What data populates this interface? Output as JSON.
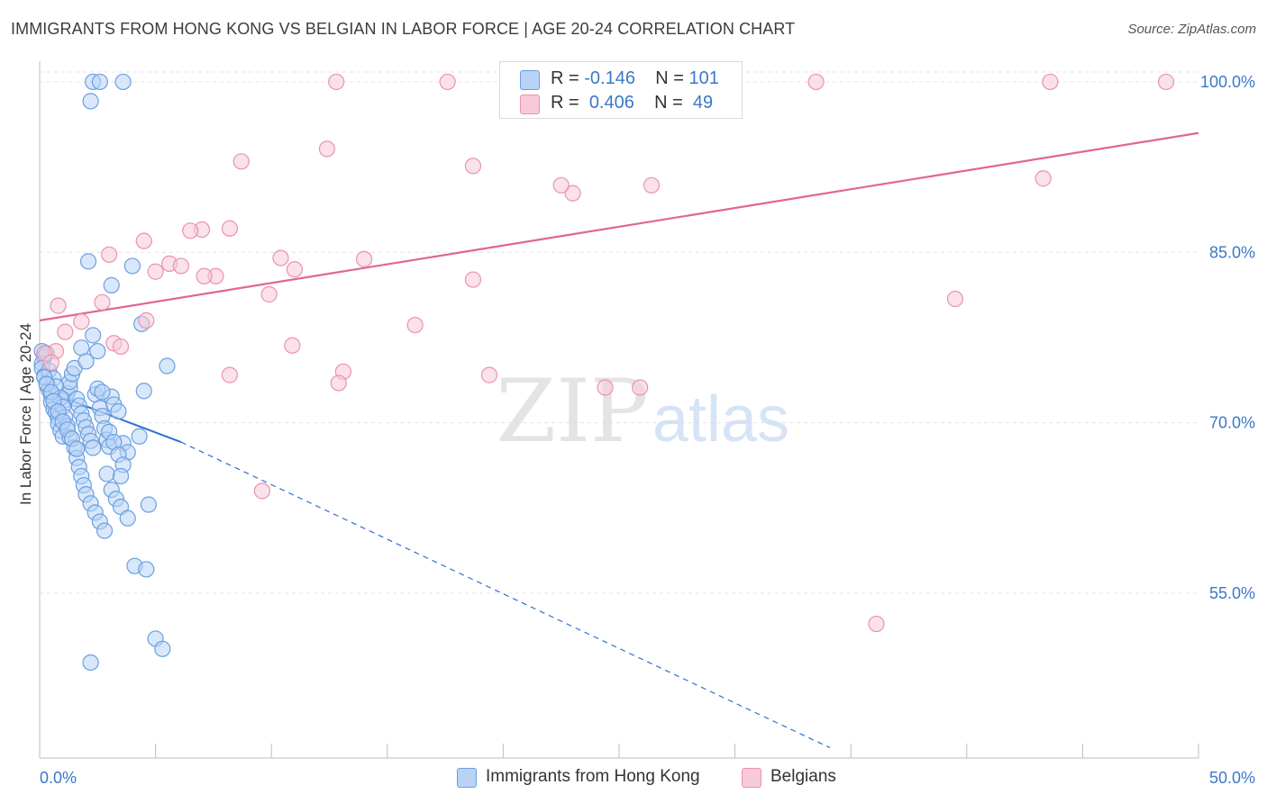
{
  "title": "IMMIGRANTS FROM HONG KONG VS BELGIAN IN LABOR FORCE | AGE 20-24 CORRELATION CHART",
  "source": "Source: ZipAtlas.com",
  "watermark": {
    "zip": "ZIP",
    "atlas": "atlas"
  },
  "legend": {
    "rows": [
      {
        "r_label": "R = ",
        "r_value": "-0.146",
        "n_label": "N = ",
        "n_value": "101"
      },
      {
        "r_label": "R = ",
        "r_value": "0.406",
        "n_label": "N = ",
        "n_value": "49"
      }
    ]
  },
  "bottom_legend": [
    "Immigrants from Hong Kong",
    "Belgians"
  ],
  "colors": {
    "blue_fill": "#b8d3f5",
    "blue_stroke": "#6a9fe0",
    "blue_line": "#2f6fd1",
    "pink_fill": "#f8c9d7",
    "pink_stroke": "#ea93ad",
    "pink_line": "#e0678f",
    "tick_label": "#3a78c9",
    "grid": "#e3e3e3"
  },
  "chart_data": {
    "type": "scatter",
    "title": "IMMIGRANTS FROM HONG KONG VS BELGIAN IN LABOR FORCE | AGE 20-24 CORRELATION CHART",
    "xlabel": "",
    "ylabel": "In Labor Force | Age 20-24",
    "xlim": [
      0,
      50
    ],
    "ylim": [
      40.5,
      101.5
    ],
    "x_tick_labels": [
      "0.0%",
      "50.0%"
    ],
    "y_ticks": [
      55,
      70,
      85,
      100
    ],
    "y_tick_labels": [
      "55.0%",
      "70.0%",
      "85.0%",
      "100.0%"
    ],
    "grid": true,
    "legend_position": "top-center",
    "series": [
      {
        "name": "Immigrants from Hong Kong",
        "color": "#6a9fe0",
        "R": -0.146,
        "N": 101,
        "trend": {
          "x": [
            0,
            6.1
          ],
          "y": [
            73.0,
            68.3
          ],
          "dashed_to": [
            34.1,
            41.4
          ]
        },
        "x": [
          2.3,
          2.6,
          3.6,
          2.2,
          2.1,
          3.1,
          4.4,
          0.1,
          0.2,
          0.1,
          0.1,
          0.2,
          0.3,
          0.4,
          0.5,
          0.5,
          0.6,
          0.7,
          0.8,
          0.8,
          0.9,
          1.0,
          1.1,
          1.2,
          1.3,
          1.3,
          1.4,
          1.5,
          1.6,
          1.7,
          1.8,
          1.9,
          2.0,
          2.1,
          2.2,
          2.3,
          2.4,
          2.5,
          2.6,
          2.7,
          2.8,
          2.9,
          3.0,
          3.1,
          3.2,
          3.4,
          3.6,
          3.8,
          4.0,
          4.3,
          4.5,
          5.5,
          0.3,
          0.4,
          0.6,
          0.7,
          0.9,
          1.0,
          1.1,
          1.2,
          1.3,
          1.5,
          1.6,
          1.7,
          1.8,
          1.9,
          2.0,
          2.2,
          2.4,
          2.6,
          2.8,
          3.0,
          3.2,
          3.4,
          3.6,
          0.2,
          0.3,
          0.5,
          0.6,
          0.8,
          1.0,
          1.2,
          1.4,
          1.6,
          1.8,
          2.0,
          2.3,
          2.5,
          2.7,
          2.9,
          3.1,
          3.3,
          3.5,
          3.8,
          4.1,
          4.6,
          5.0,
          5.3,
          2.2,
          4.7,
          3.5
        ],
        "y": [
          100,
          100,
          100,
          98.3,
          84.2,
          82.1,
          78.7,
          76.3,
          75.8,
          75.2,
          74.8,
          74.1,
          73.5,
          72.9,
          72.4,
          71.8,
          71.2,
          70.9,
          70.4,
          69.9,
          69.3,
          68.8,
          72.0,
          72.6,
          73.1,
          73.6,
          74.3,
          74.8,
          72.1,
          71.5,
          70.8,
          70.2,
          69.6,
          69.0,
          68.4,
          67.8,
          72.5,
          73.0,
          71.3,
          70.6,
          69.5,
          68.5,
          67.9,
          72.3,
          71.6,
          71.0,
          68.2,
          67.4,
          83.8,
          68.8,
          72.8,
          75.0,
          76.1,
          74.6,
          73.9,
          73.2,
          72.2,
          71.4,
          70.5,
          69.7,
          68.7,
          67.8,
          66.9,
          66.1,
          65.3,
          64.5,
          63.7,
          62.9,
          62.1,
          61.3,
          60.5,
          69.2,
          68.3,
          67.2,
          66.3,
          74.0,
          73.4,
          72.7,
          71.9,
          71.0,
          70.1,
          69.4,
          68.6,
          67.7,
          76.6,
          75.4,
          77.7,
          76.3,
          72.7,
          65.5,
          64.1,
          63.3,
          62.6,
          61.6,
          57.4,
          57.1,
          51.0,
          50.1,
          48.9,
          62.8,
          65.3
        ]
      },
      {
        "name": "Belgians",
        "color": "#ea93ad",
        "R": 0.406,
        "N": 49,
        "trend": {
          "x": [
            0,
            50
          ],
          "y": [
            79.0,
            95.5
          ]
        },
        "x": [
          12.8,
          17.6,
          27.5,
          33.5,
          43.6,
          48.6,
          12.4,
          8.7,
          18.7,
          39.5,
          23.0,
          22.5,
          26.4,
          43.3,
          7.0,
          6.5,
          4.5,
          8.2,
          5.0,
          3.0,
          10.4,
          14.0,
          11.0,
          7.6,
          5.6,
          6.1,
          7.1,
          9.9,
          18.7,
          0.8,
          2.7,
          1.8,
          4.6,
          3.2,
          3.5,
          10.9,
          13.1,
          12.9,
          8.2,
          16.2,
          19.4,
          24.4,
          25.9,
          36.1,
          1.1,
          0.7,
          0.2,
          0.5,
          9.6
        ],
        "y": [
          100,
          100,
          100,
          100,
          100,
          100,
          94.1,
          93.0,
          92.6,
          80.9,
          90.2,
          90.9,
          90.9,
          91.5,
          87.0,
          86.9,
          86.0,
          87.1,
          83.3,
          84.8,
          84.5,
          84.4,
          83.5,
          82.9,
          84.0,
          83.8,
          82.9,
          81.3,
          82.6,
          80.3,
          80.6,
          78.9,
          79.0,
          77.0,
          76.7,
          76.8,
          74.5,
          73.5,
          74.2,
          78.6,
          74.2,
          73.1,
          73.1,
          52.3,
          78.0,
          76.3,
          76.1,
          75.3,
          64.0
        ]
      }
    ]
  }
}
